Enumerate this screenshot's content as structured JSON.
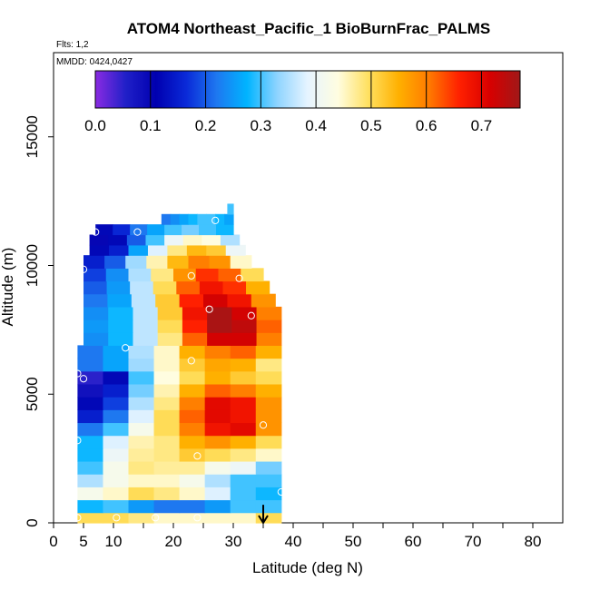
{
  "chart_data": {
    "type": "heatmap",
    "title": "ATOM4 Northeast_Pacific_1 BioBurnFrac_PALMS",
    "subtitle_flights": "Flts: 1,2",
    "subtitle_dates": "MMDD: 0424,0427",
    "xlabel": "Latitude (deg N)",
    "ylabel": "Altitude (m)",
    "xlim": [
      0,
      85
    ],
    "ylim": [
      0,
      17500
    ],
    "x_ticks": [
      0,
      5,
      10,
      20,
      30,
      40,
      50,
      60,
      70,
      80
    ],
    "x_minor_ticks": [
      15,
      25,
      35,
      45,
      55,
      65,
      75
    ],
    "y_ticks": [
      0,
      5000,
      10000,
      15000
    ],
    "colorbar": {
      "min": 0.0,
      "max": 0.77,
      "ticks": [
        0.0,
        0.1,
        0.2,
        0.3,
        0.4,
        0.5,
        0.6,
        0.7
      ],
      "tick_labels": [
        "0.0",
        "0.1",
        "0.2",
        "0.3",
        "0.4",
        "0.5",
        "0.6",
        "0.7"
      ],
      "colors": [
        "#8a2be2",
        "#2020c8",
        "#0000b0",
        "#0a2ad8",
        "#1e78f0",
        "#00b4ff",
        "#8fd4ff",
        "#e6f4ff",
        "#fffde0",
        "#ffe060",
        "#ffb000",
        "#ff7a00",
        "#ff2000",
        "#d80000",
        "#a01818"
      ]
    },
    "cells": [
      {
        "lat": [
          4,
          38
        ],
        "alt": [
          0,
          400
        ],
        "v": [
          0.5,
          0.5,
          0.48,
          0.45,
          0.45,
          0.45,
          0.45,
          0.5
        ]
      },
      {
        "lat": [
          4,
          38
        ],
        "alt": [
          400,
          900
        ],
        "v": [
          0.28,
          0.3,
          0.25,
          0.22,
          0.22,
          0.25,
          0.3,
          0.3
        ]
      },
      {
        "lat": [
          4,
          38
        ],
        "alt": [
          900,
          1400
        ],
        "v": [
          0.42,
          0.45,
          0.5,
          0.48,
          0.45,
          0.38,
          0.3,
          0.28
        ]
      },
      {
        "lat": [
          4,
          38
        ],
        "alt": [
          1400,
          1900
        ],
        "v": [
          0.35,
          0.42,
          0.45,
          0.45,
          0.42,
          0.35,
          0.3,
          0.3
        ]
      },
      {
        "lat": [
          4,
          38
        ],
        "alt": [
          1900,
          2400
        ],
        "v": [
          0.3,
          0.42,
          0.48,
          0.47,
          0.47,
          0.42,
          0.4,
          0.32
        ]
      },
      {
        "lat": [
          4,
          38
        ],
        "alt": [
          2400,
          2900
        ],
        "v": [
          0.28,
          0.4,
          0.47,
          0.48,
          0.52,
          0.5,
          0.48,
          0.45
        ]
      },
      {
        "lat": [
          4,
          38
        ],
        "alt": [
          2900,
          3400
        ],
        "v": [
          0.28,
          0.38,
          0.46,
          0.48,
          0.55,
          0.58,
          0.55,
          0.5
        ]
      },
      {
        "lat": [
          4,
          38
        ],
        "alt": [
          3400,
          3900
        ],
        "v": [
          0.22,
          0.3,
          0.42,
          0.5,
          0.6,
          0.68,
          0.7,
          0.58
        ]
      },
      {
        "lat": [
          4,
          38
        ],
        "alt": [
          3900,
          4400
        ],
        "v": [
          0.15,
          0.22,
          0.38,
          0.5,
          0.62,
          0.7,
          0.68,
          0.58
        ]
      },
      {
        "lat": [
          4,
          38
        ],
        "alt": [
          4400,
          4900
        ],
        "v": [
          0.12,
          0.18,
          0.35,
          0.48,
          0.6,
          0.7,
          0.68,
          0.58
        ]
      },
      {
        "lat": [
          4,
          38
        ],
        "alt": [
          4900,
          5400
        ],
        "v": [
          0.08,
          0.15,
          0.32,
          0.46,
          0.55,
          0.62,
          0.6,
          0.55
        ]
      },
      {
        "lat": [
          4,
          38
        ],
        "alt": [
          5400,
          5900
        ],
        "v": [
          0.05,
          0.12,
          0.3,
          0.44,
          0.5,
          0.55,
          0.52,
          0.5
        ]
      },
      {
        "lat": [
          4,
          38
        ],
        "alt": [
          5900,
          6400
        ],
        "v": [
          0.22,
          0.26,
          0.34,
          0.45,
          0.52,
          0.56,
          0.55,
          0.48
        ]
      },
      {
        "lat": [
          4,
          38
        ],
        "alt": [
          6400,
          6900
        ],
        "v": [
          0.22,
          0.26,
          0.35,
          0.45,
          0.55,
          0.6,
          0.62,
          0.55
        ]
      },
      {
        "lat": [
          5,
          38
        ],
        "alt": [
          6900,
          7400
        ],
        "v": [
          0.24,
          0.28,
          0.36,
          0.48,
          0.62,
          0.72,
          0.72,
          0.6
        ]
      },
      {
        "lat": [
          5,
          38
        ],
        "alt": [
          7400,
          7900
        ],
        "v": [
          0.25,
          0.28,
          0.36,
          0.5,
          0.66,
          0.76,
          0.74,
          0.62
        ]
      },
      {
        "lat": [
          5,
          38
        ],
        "alt": [
          7900,
          8400
        ],
        "v": [
          0.24,
          0.28,
          0.36,
          0.52,
          0.68,
          0.76,
          0.72,
          0.6
        ]
      },
      {
        "lat": [
          5,
          37
        ],
        "alt": [
          8400,
          8900
        ],
        "v": [
          0.22,
          0.26,
          0.36,
          0.52,
          0.66,
          0.72,
          0.68,
          0.58
        ]
      },
      {
        "lat": [
          5,
          36
        ],
        "alt": [
          8900,
          9400
        ],
        "v": [
          0.2,
          0.25,
          0.36,
          0.5,
          0.62,
          0.68,
          0.65,
          0.55
        ]
      },
      {
        "lat": [
          5,
          35
        ],
        "alt": [
          9400,
          9900
        ],
        "v": [
          0.18,
          0.24,
          0.35,
          0.48,
          0.58,
          0.65,
          0.62,
          0.5
        ]
      },
      {
        "lat": [
          5,
          33
        ],
        "alt": [
          9900,
          10400
        ],
        "v": [
          0.15,
          0.2,
          0.34,
          0.46,
          0.54,
          0.6,
          0.58,
          0.45
        ]
      },
      {
        "lat": [
          6,
          32
        ],
        "alt": [
          10400,
          10800
        ],
        "v": [
          0.12,
          0.15,
          0.26,
          0.38,
          0.48,
          0.54,
          0.52,
          0.4
        ]
      },
      {
        "lat": [
          6,
          31
        ],
        "alt": [
          10800,
          11200
        ],
        "v": [
          0.1,
          0.12,
          0.2,
          0.3,
          0.4,
          0.45,
          0.44,
          0.35
        ]
      },
      {
        "lat": [
          7,
          30
        ],
        "alt": [
          11200,
          11600
        ],
        "v": [
          0.12,
          0.16,
          0.22,
          0.26,
          0.3,
          0.32,
          0.3,
          0.28
        ]
      },
      {
        "lat": [
          18,
          30
        ],
        "alt": [
          11600,
          12000
        ],
        "v": [
          0.22,
          0.24,
          0.26,
          0.28,
          0.3,
          0.3,
          0.28,
          0.26
        ]
      },
      {
        "lat": [
          29,
          30
        ],
        "alt": [
          12000,
          12400
        ],
        "v": [
          0.3,
          0.3,
          0.3,
          0.3,
          0.3,
          0.3,
          0.3,
          0.3
        ]
      }
    ],
    "sample_points": [
      {
        "lat": 7,
        "alt": 11300
      },
      {
        "lat": 14,
        "alt": 11300
      },
      {
        "lat": 27,
        "alt": 11750
      },
      {
        "lat": 5,
        "alt": 9850
      },
      {
        "lat": 23,
        "alt": 9600
      },
      {
        "lat": 31,
        "alt": 9500
      },
      {
        "lat": 26,
        "alt": 8300
      },
      {
        "lat": 33,
        "alt": 8050
      },
      {
        "lat": 12,
        "alt": 6800
      },
      {
        "lat": 23,
        "alt": 6300
      },
      {
        "lat": 4,
        "alt": 5800
      },
      {
        "lat": 5,
        "alt": 5600
      },
      {
        "lat": 35,
        "alt": 3800
      },
      {
        "lat": 4,
        "alt": 3200
      },
      {
        "lat": 24,
        "alt": 2600
      },
      {
        "lat": 38,
        "alt": 1200
      },
      {
        "lat": 4,
        "alt": 200
      },
      {
        "lat": 10.5,
        "alt": 200
      },
      {
        "lat": 17,
        "alt": 200
      },
      {
        "lat": 24,
        "alt": 200
      }
    ],
    "arrow": {
      "lat": 35,
      "from_alt": 700,
      "to_alt": 0
    },
    "grid": false
  }
}
